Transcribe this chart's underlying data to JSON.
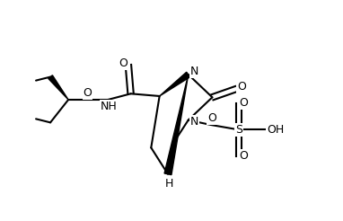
{
  "background_color": "#ffffff",
  "line_color": "#000000",
  "line_width": 1.5,
  "fig_width": 3.82,
  "fig_height": 2.46,
  "dpi": 100,
  "font_size": 9,
  "xlim": [
    -0.15,
    1.05
  ],
  "ylim": [
    0.05,
    0.95
  ]
}
